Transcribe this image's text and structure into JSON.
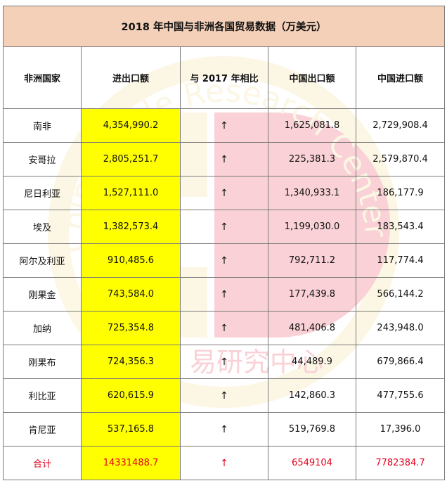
{
  "title": "2018 年中国与非洲各国贸易数据（万美元）",
  "headers": [
    "非洲国家",
    "进出口额",
    "与 2017 年相比",
    "中国出口额",
    "中国进口额"
  ],
  "rows": [
    {
      "country": "南非",
      "total": "4,354,990.2",
      "trend": "↑",
      "export": "1,625,081.8",
      "import": "2,729,908.4"
    },
    {
      "country": "安哥拉",
      "total": "2,805,251.7",
      "trend": "↑",
      "export": "225,381.3",
      "import": "2,579,870.4"
    },
    {
      "country": "尼日利亚",
      "total": "1,527,111.0",
      "trend": "↑",
      "export": "1,340,933.1",
      "import": "186,177.9"
    },
    {
      "country": "埃及",
      "total": "1,382,573.4",
      "trend": "↑",
      "export": "1,199,030.0",
      "import": "183,543.4"
    },
    {
      "country": "阿尔及利亚",
      "total": "910,485.6",
      "trend": "↑",
      "export": "792,711.2",
      "import": "117,774.4"
    },
    {
      "country": "刚果金",
      "total": "743,584.0",
      "trend": "↑",
      "export": "177,439.8",
      "import": "566,144.2"
    },
    {
      "country": "加纳",
      "total": "725,354.8",
      "trend": "↑",
      "export": "481,406.8",
      "import": "243,948.0"
    },
    {
      "country": "刚果布",
      "total": "724,356.3",
      "trend": "↑",
      "export": "44,489.9",
      "import": "679,866.4"
    },
    {
      "country": "利比亚",
      "total": "620,615.9",
      "trend": "↑",
      "export": "142,860.3",
      "import": "477,755.6"
    },
    {
      "country": "肯尼亚",
      "total": "537,165.8",
      "trend": "↑",
      "export": "519,769.8",
      "import": "17,396.0"
    }
  ],
  "total_row": {
    "country": "合计",
    "total": "14331488.7",
    "trend": "↑",
    "export": "6549104",
    "import": "7782384.7"
  },
  "watermark": {
    "arc_text": "China Trade Research Center",
    "cn_text": "易研究中心"
  },
  "colors": {
    "title_bg": "#f4d0b8",
    "highlight": "#ffff00",
    "total_text": "#e5001c",
    "watermark_red": "#e8314a",
    "watermark_yellow": "#f5d98a"
  }
}
